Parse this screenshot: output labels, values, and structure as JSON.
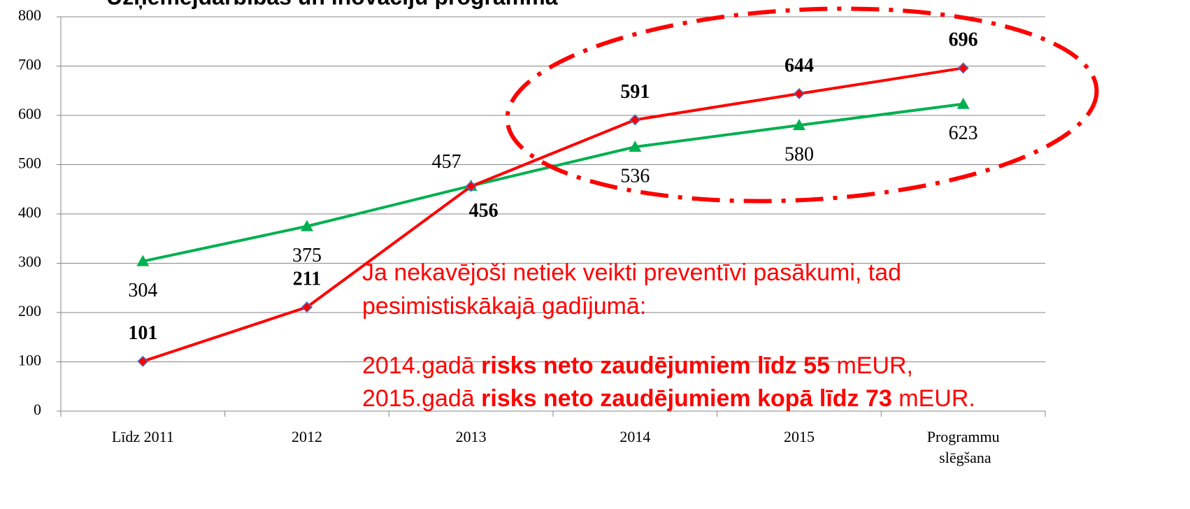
{
  "chart_data": {
    "type": "line",
    "title": "Uzņēmējdarbības un inovāciju programma",
    "categories": [
      "Līdz 2011",
      "2012",
      "2013",
      "2014",
      "2015",
      "Programmu slēgšana"
    ],
    "series": [
      {
        "color": "#00b050",
        "marker": "triangle",
        "label_bold": false,
        "values": [
          304,
          375,
          457,
          536,
          580,
          623
        ]
      },
      {
        "color": "#ff0000",
        "marker": "diamond",
        "label_bold": true,
        "values": [
          101,
          211,
          456,
          591,
          644,
          696
        ]
      }
    ],
    "ylim": [
      0,
      800
    ],
    "yticks": [
      0,
      100,
      200,
      300,
      400,
      500,
      600,
      700,
      800
    ],
    "grid": true,
    "annotation": [
      [
        {
          "text": "Ja nekavējoši netiek veikti preventīvi pasākumi, tad",
          "bold": false
        }
      ],
      [
        {
          "text": "pesimistiskākajā gadījumā:",
          "bold": false
        }
      ],
      [
        {
          "text": "2014.gadā ",
          "bold": false
        },
        {
          "text": "risks neto zaudējumiem līdz 55",
          "bold": true
        },
        {
          "text": " mEUR,",
          "bold": false
        }
      ],
      [
        {
          "text": "2015.gadā ",
          "bold": false
        },
        {
          "text": "risks neto zaudējumiem kopā līdz 73",
          "bold": true
        },
        {
          "text": " mEUR.",
          "bold": false
        }
      ]
    ]
  }
}
